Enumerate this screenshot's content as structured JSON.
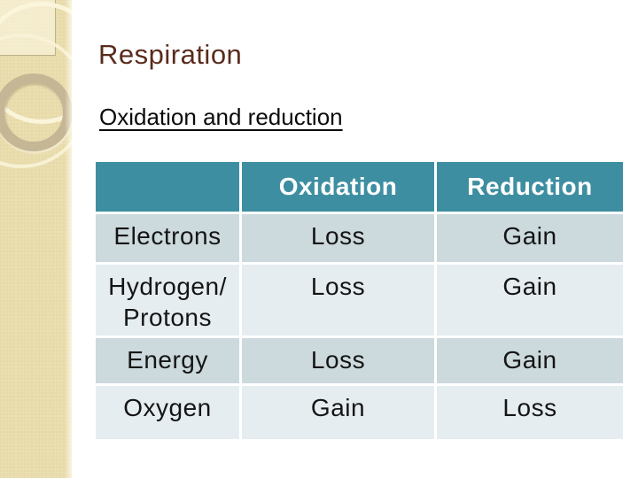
{
  "slide": {
    "title": "Respiration",
    "subtitle": "Oxidation and reduction"
  },
  "table": {
    "columns": [
      "",
      "Oxidation",
      "Reduction"
    ],
    "rows": [
      {
        "label": "Electrons",
        "oxidation": "Loss",
        "reduction": "Gain"
      },
      {
        "label": "Hydrogen/ Protons",
        "oxidation": "Loss",
        "reduction": "Gain"
      },
      {
        "label": "Energy",
        "oxidation": "Loss",
        "reduction": "Gain"
      },
      {
        "label": "Oxygen",
        "oxidation": "Gain",
        "reduction": "Loss"
      }
    ]
  },
  "appearance": {
    "header_background": "#3e8ea1",
    "header_text": "#ffffff",
    "row_band_dark": "#ccd9dd",
    "row_band_light": "#e6edf0",
    "title_color": "#5a2b1d",
    "subtitle_color": "#0b0b0b",
    "sidebar_color": "#e9dcac",
    "slide_background": "#ffffff"
  }
}
